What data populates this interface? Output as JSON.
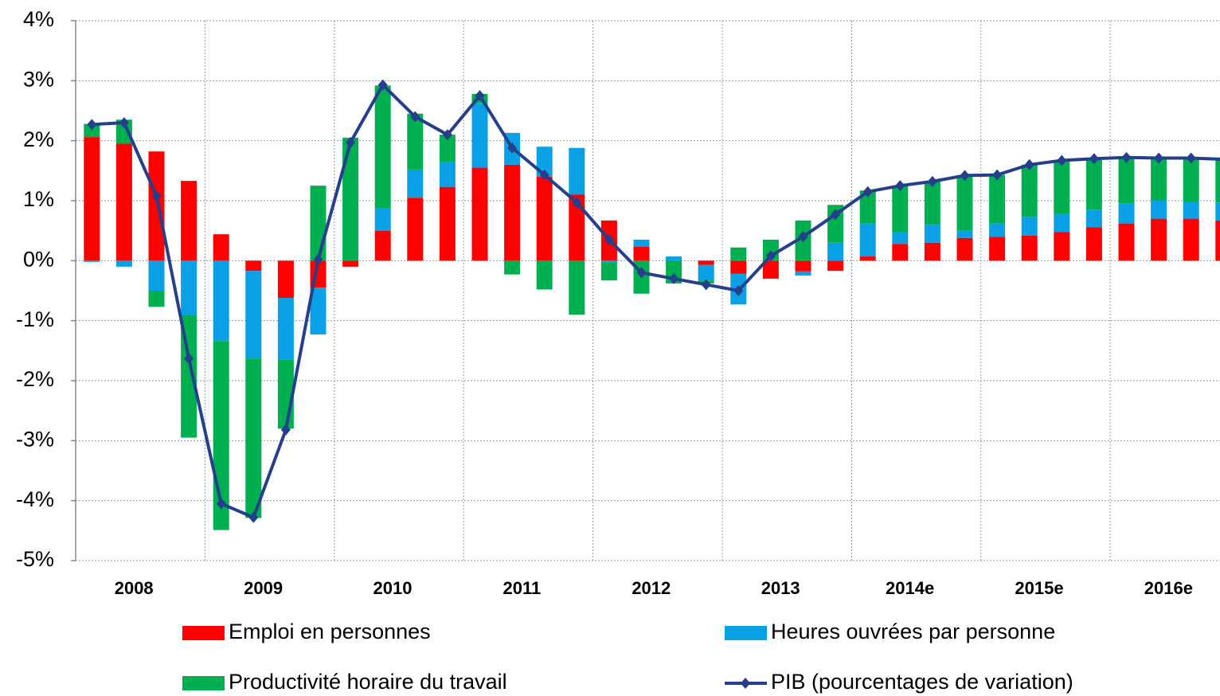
{
  "chart_data": {
    "type": "bar",
    "categories": [
      "2008",
      null,
      null,
      null,
      "2009",
      null,
      null,
      null,
      "2010",
      null,
      null,
      null,
      "2011",
      null,
      null,
      null,
      "2012",
      null,
      null,
      null,
      "2013",
      null,
      null,
      null,
      "2014e",
      null,
      null,
      null,
      "2015e",
      null,
      null,
      null,
      "2016e",
      null,
      null,
      null
    ],
    "series": [
      {
        "name": "Emploi en personnes",
        "color": "#ff0000",
        "type": "bar",
        "values": [
          2.06,
          1.95,
          1.82,
          1.33,
          0.44,
          -0.17,
          -0.62,
          -0.45,
          -0.1,
          0.5,
          1.05,
          1.23,
          1.55,
          1.6,
          1.4,
          1.1,
          0.67,
          0.23,
          0,
          -0.07,
          -0.22,
          -0.3,
          -0.18,
          -0.17,
          0.07,
          0.28,
          0.3,
          0.38,
          0.4,
          0.42,
          0.48,
          0.56,
          0.62,
          0.7,
          0.7,
          0.67
        ]
      },
      {
        "name": "Heures ouvrées par personne",
        "color": "#0aa0e6",
        "type": "bar",
        "values": [
          -0.02,
          -0.1,
          -0.5,
          -0.9,
          -1.34,
          -1.46,
          -1.03,
          -0.78,
          0,
          0.37,
          0.47,
          0.42,
          1.08,
          0.53,
          0.5,
          0.78,
          -0.03,
          0.12,
          0.07,
          -0.26,
          -0.51,
          0,
          -0.07,
          0.3,
          0.55,
          0.19,
          0.3,
          0.12,
          0.22,
          0.31,
          0.3,
          0.29,
          0.33,
          0.3,
          0.28,
          0.3
        ]
      },
      {
        "name": "Productivité horaire du travail",
        "color": "#00b050",
        "type": "bar",
        "values": [
          0.22,
          0.4,
          -0.27,
          -2.05,
          -3.15,
          -2.66,
          -1.15,
          1.25,
          2.05,
          2.05,
          0.93,
          0.45,
          0.15,
          -0.23,
          -0.48,
          -0.9,
          -0.3,
          -0.55,
          -0.38,
          -0.05,
          0.22,
          0.35,
          0.67,
          0.63,
          0.55,
          0.78,
          0.72,
          0.92,
          0.81,
          0.87,
          0.89,
          0.85,
          0.77,
          0.71,
          0.73,
          0.73
        ]
      },
      {
        "name": "PIB (pourcentages de variation)",
        "color": "#253f8c",
        "type": "line",
        "values": [
          2.27,
          2.3,
          1.08,
          -1.63,
          -4.05,
          -4.28,
          -2.82,
          0.02,
          1.97,
          2.93,
          2.4,
          2.1,
          2.75,
          1.88,
          1.43,
          0.97,
          0.35,
          -0.2,
          -0.3,
          -0.4,
          -0.5,
          0.08,
          0.4,
          0.77,
          1.15,
          1.25,
          1.32,
          1.42,
          1.43,
          1.6,
          1.67,
          1.7,
          1.72,
          1.71,
          1.71,
          1.69
        ]
      }
    ],
    "ylim": [
      -5,
      4
    ],
    "yticks": [
      {
        "value": -5,
        "label": "-5%"
      },
      {
        "value": -4,
        "label": "-4%"
      },
      {
        "value": -3,
        "label": "-3%"
      },
      {
        "value": -2,
        "label": "-2%"
      },
      {
        "value": -1,
        "label": "-1%"
      },
      {
        "value": 0,
        "label": "0%"
      },
      {
        "value": 1,
        "label": "1%"
      },
      {
        "value": 2,
        "label": "2%"
      },
      {
        "value": 3,
        "label": "3%"
      },
      {
        "value": 4,
        "label": "4%"
      }
    ],
    "grid": true
  }
}
